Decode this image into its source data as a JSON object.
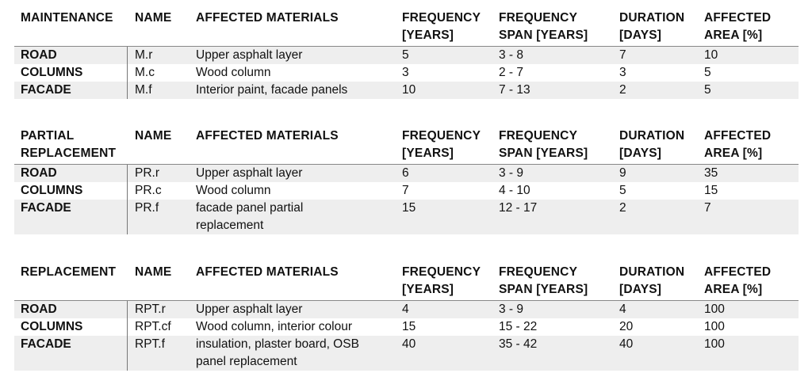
{
  "sections": [
    {
      "header": [
        "MAINTENANCE",
        "NAME",
        "AFFECTED MATERIALS",
        "FREQUENCY\n[YEARS]",
        "FREQUENCY\nSPAN [YEARS]",
        "DURATION\n[DAYS]",
        "AFFECTED\nAREA [%]"
      ],
      "rows": [
        [
          "ROAD",
          "M.r",
          "Upper asphalt layer",
          "5",
          "3 - 8",
          "7",
          "10"
        ],
        [
          "COLUMNS",
          "M.c",
          "Wood column",
          "3",
          "2 - 7",
          "3",
          "5"
        ],
        [
          "FACADE",
          "M.f",
          "Interior paint, facade panels",
          "10",
          "7 - 13",
          "2",
          "5"
        ]
      ]
    },
    {
      "header": [
        "PARTIAL\nREPLACEMENT",
        "NAME",
        "AFFECTED MATERIALS",
        "FREQUENCY\n[YEARS]",
        "FREQUENCY\nSPAN [YEARS]",
        "DURATION\n[DAYS]",
        "AFFECTED\nAREA [%]"
      ],
      "rows": [
        [
          "ROAD",
          "PR.r",
          "Upper asphalt layer",
          "6",
          "3 - 9",
          "9",
          "35"
        ],
        [
          "COLUMNS",
          "PR.c",
          "Wood column",
          "7",
          "4 - 10",
          "5",
          "15"
        ],
        [
          "FACADE",
          "PR.f",
          "facade panel partial\nreplacement",
          "15",
          "12 - 17",
          "2",
          "7"
        ]
      ]
    },
    {
      "header": [
        "REPLACEMENT",
        "NAME",
        "AFFECTED MATERIALS",
        "FREQUENCY\n[YEARS]",
        "FREQUENCY\nSPAN [YEARS]",
        "DURATION\n[DAYS]",
        "AFFECTED\nAREA [%]"
      ],
      "rows": [
        [
          "ROAD",
          "RPT.r",
          "Upper asphalt layer",
          "4",
          "3 - 9",
          "4",
          "100"
        ],
        [
          "COLUMNS",
          "RPT.cf",
          "Wood column, interior colour",
          "15",
          "15 - 22",
          "20",
          "100"
        ],
        [
          "FACADE",
          "RPT.f",
          "insulation, plaster board, OSB\npanel replacement",
          "40",
          "35 - 42",
          "40",
          "100"
        ]
      ]
    }
  ]
}
